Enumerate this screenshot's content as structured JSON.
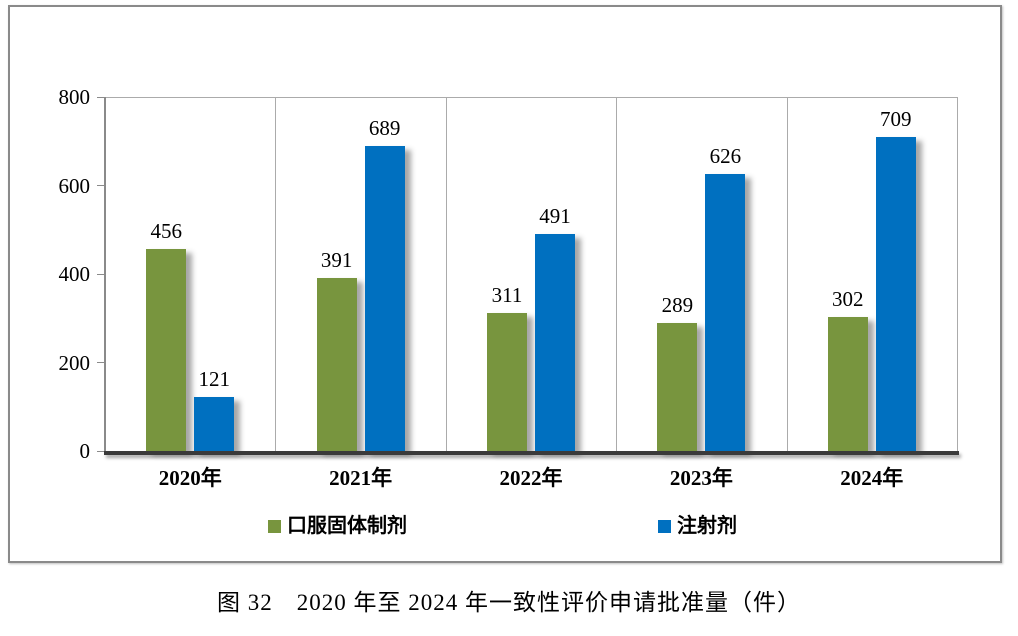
{
  "figure": {
    "caption": "图 32　2020 年至 2024 年一致性评价申请批准量（件）"
  },
  "chart_data": {
    "type": "bar",
    "title": "",
    "xlabel": "",
    "ylabel": "",
    "categories": [
      "2020年",
      "2021年",
      "2022年",
      "2023年",
      "2024年"
    ],
    "series": [
      {
        "name": "口服固体制剂",
        "color": "#78953e",
        "values": [
          456,
          391,
          311,
          289,
          302
        ]
      },
      {
        "name": "注射剂",
        "color": "#0070c0",
        "values": [
          121,
          689,
          491,
          626,
          709
        ]
      }
    ],
    "ylim": [
      0,
      800
    ],
    "yticks": [
      0,
      200,
      400,
      600,
      800
    ],
    "grid": "vertical-panel-dividers",
    "legend_position": "bottom",
    "colors": {
      "panel_divider": "#ababab",
      "y_axis": "#8a8a8a",
      "x_axis": "#3a3a3a",
      "box_border": "#8a8a8a"
    }
  }
}
